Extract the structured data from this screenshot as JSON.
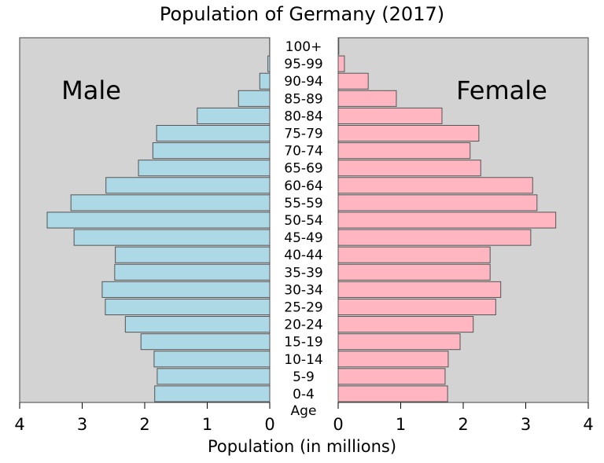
{
  "chart_data": {
    "type": "pyramid",
    "title": "Population of Germany (2017)",
    "x_label": "Population (in millions)",
    "category_label": "Age",
    "categories": [
      "0-4",
      "5-9",
      "10-14",
      "15-19",
      "20-24",
      "25-29",
      "30-34",
      "35-39",
      "40-44",
      "45-49",
      "50-54",
      "55-59",
      "60-64",
      "65-69",
      "70-74",
      "75-79",
      "80-84",
      "85-89",
      "90-94",
      "95-99",
      "100+"
    ],
    "series": [
      {
        "name": "Male",
        "color": "#add8e6",
        "values": [
          1.84,
          1.8,
          1.85,
          2.06,
          2.31,
          2.63,
          2.68,
          2.48,
          2.47,
          3.13,
          3.56,
          3.18,
          2.62,
          2.1,
          1.87,
          1.81,
          1.16,
          0.5,
          0.16,
          0.03,
          0.003
        ]
      },
      {
        "name": "Female",
        "color": "#ffb6c1",
        "values": [
          1.75,
          1.71,
          1.76,
          1.95,
          2.16,
          2.52,
          2.6,
          2.43,
          2.43,
          3.08,
          3.48,
          3.18,
          3.11,
          2.28,
          2.11,
          2.25,
          1.66,
          0.93,
          0.48,
          0.1,
          0.01
        ]
      }
    ],
    "xlim": [
      0,
      4
    ],
    "xticks": [
      0,
      1,
      2,
      3,
      4
    ]
  }
}
